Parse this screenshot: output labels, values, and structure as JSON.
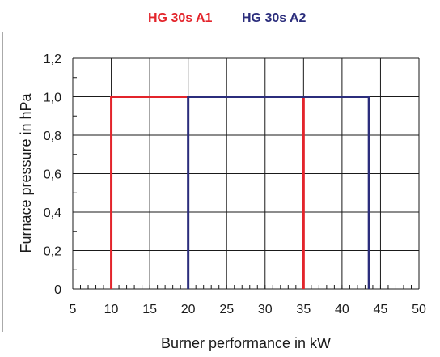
{
  "chart_data": {
    "type": "line",
    "legend_position": "top-center",
    "xlabel": "Burner performance in kW",
    "ylabel": "Furnace pressure in hPa",
    "xlim": [
      5,
      50
    ],
    "ylim": [
      0,
      1.2
    ],
    "x_ticks": [
      5,
      10,
      15,
      20,
      25,
      30,
      35,
      40,
      45,
      50
    ],
    "x_tick_labels": [
      "5",
      "10",
      "15",
      "20",
      "25",
      "30",
      "35",
      "40",
      "45",
      "50"
    ],
    "y_ticks": [
      0,
      0.2,
      0.4,
      0.6,
      0.8,
      1.0,
      1.2
    ],
    "y_tick_labels": [
      "0",
      "0,2",
      "0,4",
      "0,6",
      "0,8",
      "1,0",
      "1,2"
    ],
    "grid": true,
    "series": [
      {
        "name": "HG 30s A1",
        "color": "#e3242b",
        "points": [
          [
            10,
            0
          ],
          [
            10,
            1.0
          ],
          [
            35,
            1.0
          ],
          [
            35,
            0
          ]
        ]
      },
      {
        "name": "HG 30s A2",
        "color": "#2b2d7c",
        "points": [
          [
            20,
            0
          ],
          [
            20,
            1.0
          ],
          [
            43.5,
            1.0
          ],
          [
            43.5,
            0
          ]
        ]
      }
    ]
  }
}
